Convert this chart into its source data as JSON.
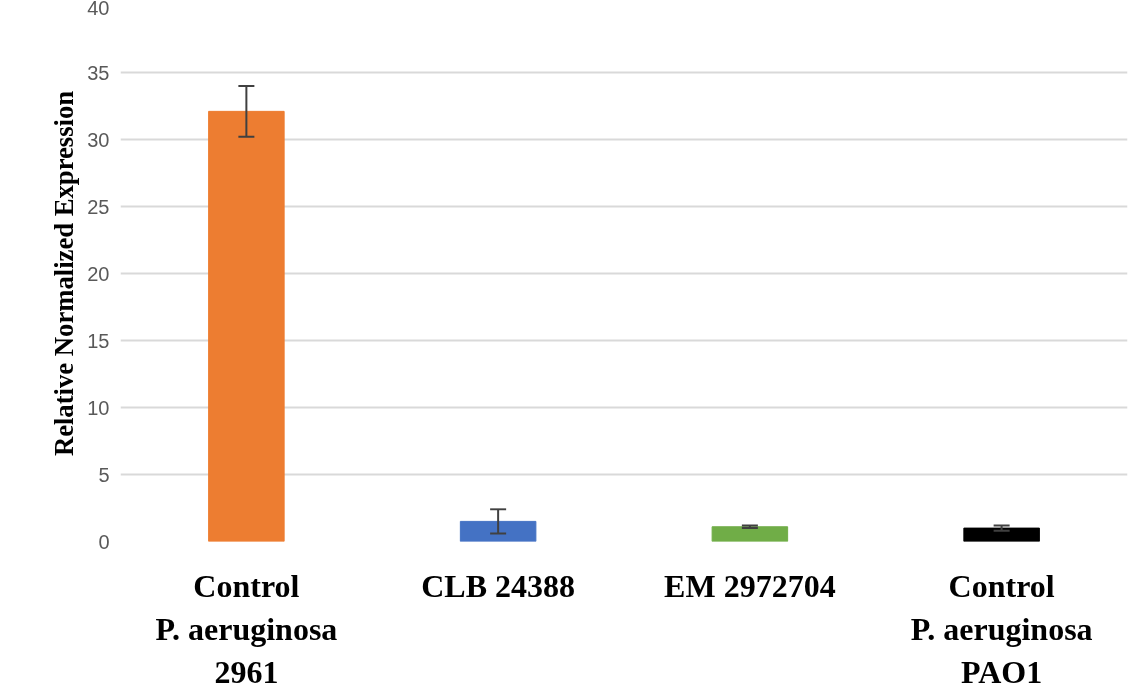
{
  "chart_data": {
    "type": "bar",
    "ylabel": "Relative Normalized Expression",
    "categories": [
      "Control\nP. aeruginosa\n2961",
      "CLB 24388",
      "EM 2972704",
      "Control\nP. aeruginosa\nPAO1"
    ],
    "values": [
      32.1,
      1.5,
      1.1,
      1.0
    ],
    "colors": [
      "#ed7d31",
      "#4472c4",
      "#70ad47",
      "#000000"
    ],
    "errors": [
      1.9,
      0.9,
      0.1,
      0.2
    ],
    "ylim": [
      0,
      40
    ],
    "yticks": [
      0,
      5,
      10,
      15,
      20,
      25,
      30,
      35,
      40
    ],
    "grid": "y"
  }
}
